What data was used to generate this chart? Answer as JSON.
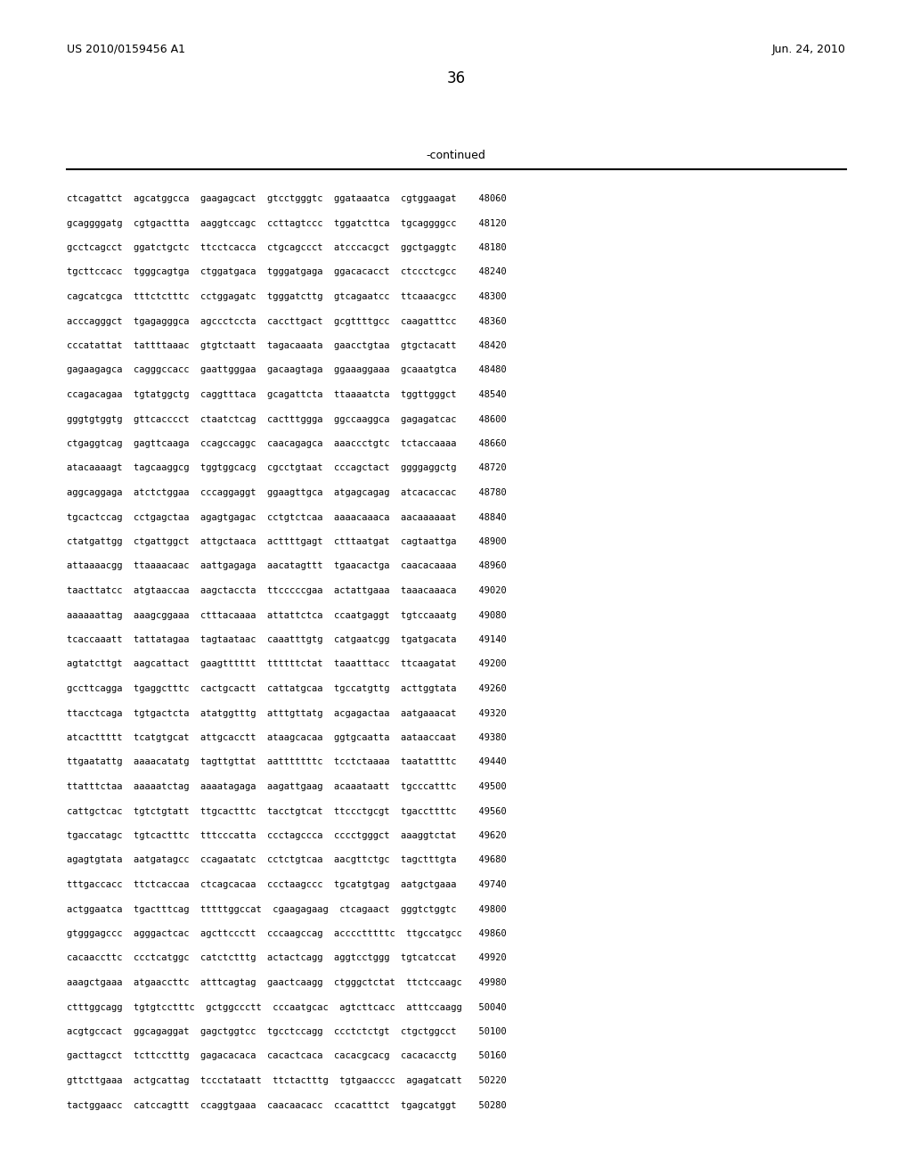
{
  "header_left": "US 2010/0159456 A1",
  "header_right": "Jun. 24, 2010",
  "page_number": "36",
  "continued_label": "-continued",
  "background_color": "#ffffff",
  "text_color": "#000000",
  "sequence_lines": [
    "ctcagattct  agcatggcca  gaagagcact  gtcctgggtc  ggataaatca  cgtggaagat    48060",
    "gcaggggatg  cgtgacttta  aaggtccagc  ccttagtccc  tggatcttca  tgcaggggcc    48120",
    "gcctcagcct  ggatctgctc  ttcctcacca  ctgcagccct  atcccacgct  ggctgaggtc    48180",
    "tgcttccacc  tgggcagtga  ctggatgaca  tgggatgaga  ggacacacct  ctccctcgcc    48240",
    "cagcatcgca  tttctctttc  cctggagatc  tgggatcttg  gtcagaatcc  ttcaaacgcc    48300",
    "acccagggct  tgagagggca  agccctccta  caccttgact  gcgttttgcc  caagatttcc    48360",
    "cccatattat  tattttaaac  gtgtctaatt  tagacaaata  gaacctgtaa  gtgctacatt    48420",
    "gagaagagca  cagggccacc  gaattgggaa  gacaagtaga  ggaaaggaaa  gcaaatgtca    48480",
    "ccagacagaa  tgtatggctg  caggtttaca  gcagattcta  ttaaaatcta  tggttgggct    48540",
    "gggtgtggtg  gttcacccct  ctaatctcag  cactttggga  ggccaaggca  gagagatcac    48600",
    "ctgaggtcag  gagttcaaga  ccagccaggc  caacagagca  aaaccctgtc  tctaccaaaa    48660",
    "atacaaaagt  tagcaaggcg  tggtggcacg  cgcctgtaat  cccagctact  ggggaggctg    48720",
    "aggcaggaga  atctctggaa  cccaggaggt  ggaagttgca  atgagcagag  atcacaccac    48780",
    "tgcactccag  cctgagctaa  agagtgagac  cctgtctcaa  aaaacaaaca  aacaaaaaat    48840",
    "ctatgattgg  ctgattggct  attgctaaca  acttttgagt  ctttaatgat  cagtaattga    48900",
    "attaaaacgg  ttaaaacaac  aattgagaga  aacatagttt  tgaacactga  caacacaaaa    48960",
    "taacttatcc  atgtaaccaa  aagctaccta  ttcccccgaa  actattgaaa  taaacaaaca    49020",
    "aaaaaattag  aaagcggaaa  ctttacaaaa  attattctca  ccaatgaggt  tgtccaaatg    49080",
    "tcaccaaatt  tattatagaa  tagtaataac  caaatttgtg  catgaatcgg  tgatgacata    49140",
    "agtatcttgt  aagcattact  gaagtttttt  ttttttctat  taaatttacc  ttcaagatat    49200",
    "gccttcagga  tgaggctttc  cactgcactt  cattatgcaa  tgccatgttg  acttggtata    49260",
    "ttacctcaga  tgtgactcta  atatggtttg  atttgttatg  acgagactaa  aatgaaacat    49320",
    "atcacttttt  tcatgtgcat  attgcacctt  ataagcacaa  ggtgcaatta  aataaccaat    49380",
    "ttgaatattg  aaaacatatg  tagttgttat  aatttttttc  tcctctaaaa  taatattttc    49440",
    "ttatttctaa  aaaaatctag  aaaatagaga  aagattgaag  acaaataatt  tgcccatttc    49500",
    "cattgctcac  tgtctgtatt  ttgcactttc  tacctgtcat  ttccctgcgt  tgaccttttc    49560",
    "tgaccatagc  tgtcactttc  tttcccatta  ccctagccca  cccctgggct  aaaggtctat    49620",
    "agagtgtata  aatgatagcc  ccagaatatc  cctctgtcaa  aacgttctgc  tagctttgta    49680",
    "tttgaccacc  ttctcaccaa  ctcagcacaa  ccctaagccc  tgcatgtgag  aatgctgaaa    49740",
    "actggaatca  tgactttcag  tttttggccat  cgaagagaag  ctcagaact  gggtctggtc    49800",
    "gtgggagccc  agggactcac  agcttccctt  cccaagccag  acccctttttc  ttgccatgcc   49860",
    "cacaaccttc  ccctcatggc  catctctttg  actactcagg  aggtcctggg  tgtcatccat    49920",
    "aaagctgaaa  atgaaccttc  atttcagtag  gaactcaagg  ctgggctctat  ttctccaagc   49980",
    "ctttggcagg  tgtgtcctttc  gctggccctt  cccaatgcac  agtcttcacc  atttccaagg   50040",
    "acgtgccact  ggcagaggat  gagctggtcc  tgcctccagg  ccctctctgt  ctgctggcct    50100",
    "gacttagcct  tcttcctttg  gagacacaca  cacactcaca  cacacgcacg  cacacacctg    50160",
    "gttcttgaaa  actgcattag  tccctataatt  ttctactttg  tgtgaacccc  agagatcatt   50220",
    "tactggaacc  catccagttt  ccaggtgaaa  caacaacacc  ccacatttct  tgagcatggt    50280"
  ]
}
